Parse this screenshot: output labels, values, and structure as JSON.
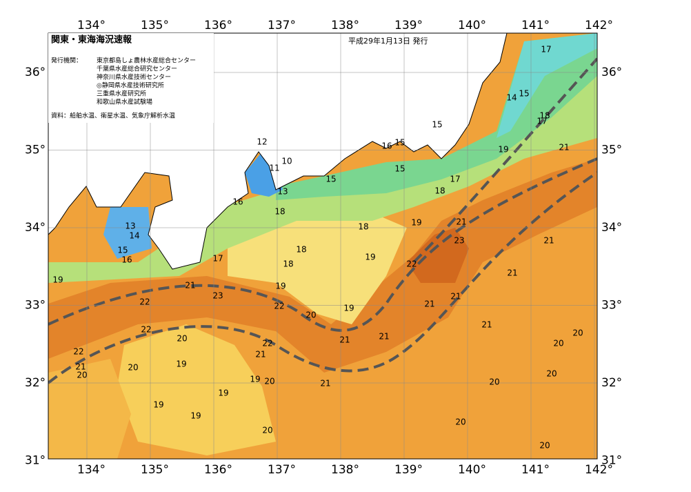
{
  "header": {
    "title": "関東・東海海況速報",
    "date": "平成29年1月13日 発行"
  },
  "issuers": {
    "label": "発行機関：",
    "items": [
      "東京都島しょ農林水産総合センター",
      "千葉県水産総合研究センター",
      "神奈川県水産技術センター",
      "◎静岡県水産技術研究所",
      "三重県水産研究所",
      "和歌山県水産試験場"
    ]
  },
  "source": "資料：船舶水温、衛星水温、気象庁解析水温",
  "lon_labels": [
    "134°",
    "135°",
    "136°",
    "137°",
    "138°",
    "139°",
    "140°",
    "141°",
    "142°"
  ],
  "lat_labels": [
    "36°",
    "35°",
    "34°",
    "33°",
    "32°",
    "31°"
  ],
  "contour_labels": [
    "17",
    "14",
    "15",
    "18",
    "17",
    "15",
    "16",
    "15",
    "15",
    "19",
    "21",
    "17",
    "18",
    "15",
    "12",
    "10",
    "11",
    "13",
    "16",
    "18",
    "18",
    "19",
    "21",
    "23",
    "21",
    "13",
    "14",
    "15",
    "16",
    "18",
    "19",
    "22",
    "18",
    "17",
    "21",
    "19",
    "21",
    "19",
    "23",
    "22",
    "22",
    "21",
    "21",
    "19",
    "20",
    "21",
    "22",
    "20",
    "21",
    "21",
    "20",
    "20",
    "22",
    "22",
    "21",
    "21",
    "20",
    "20",
    "19",
    "20",
    "19",
    "20",
    "21",
    "20",
    "19",
    "19",
    "19",
    "20",
    "20",
    "20"
  ]
}
